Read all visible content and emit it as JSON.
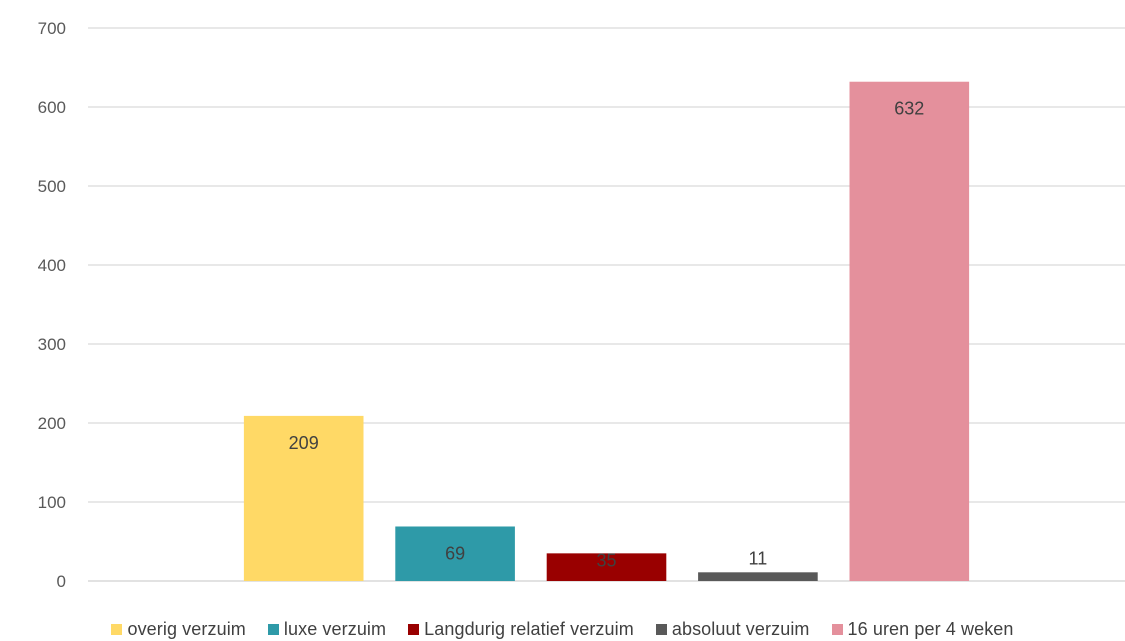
{
  "chart_data": {
    "type": "bar",
    "title": "",
    "xlabel": "",
    "ylabel": "",
    "ylim": [
      0,
      700
    ],
    "yticks": [
      0,
      100,
      200,
      300,
      400,
      500,
      600,
      700
    ],
    "grid": true,
    "legend_position": "bottom",
    "series": [
      {
        "name": "overig verzuim",
        "value": 209,
        "label": "209",
        "color": "#FFD966"
      },
      {
        "name": "luxe verzuim",
        "value": 69,
        "label": "69",
        "color": "#2E9AA8"
      },
      {
        "name": "Langdurig relatief verzuim",
        "value": 35,
        "label": "35",
        "color": "#990000"
      },
      {
        "name": "absoluut verzuim",
        "value": 11,
        "label": "11",
        "color": "#595959"
      },
      {
        "name": "16 uren per 4 weken",
        "value": 632,
        "label": "632",
        "color": "#E4909C"
      }
    ]
  }
}
